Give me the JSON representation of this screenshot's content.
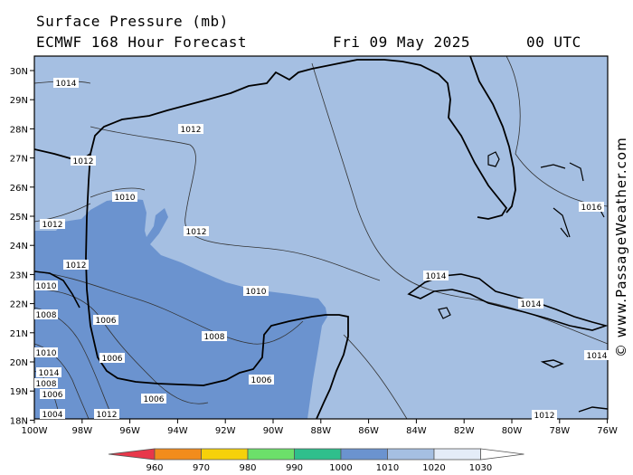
{
  "header": {
    "line1": "Surface Pressure (mb)",
    "line2": "ECMWF 168 Hour Forecast",
    "date": "Fri 09 May 2025",
    "time": "00 UTC"
  },
  "credit": "© www.PassageWeather.com",
  "axes": {
    "lat_labels": [
      "30N",
      "29N",
      "28N",
      "27N",
      "26N",
      "25N",
      "24N",
      "23N",
      "22N",
      "21N",
      "20N",
      "19N",
      "18N"
    ],
    "lon_labels": [
      "100W",
      "98W",
      "96W",
      "94W",
      "92W",
      "90W",
      "88W",
      "86W",
      "84W",
      "82W",
      "80W",
      "78W",
      "76W"
    ]
  },
  "legend": {
    "values": [
      "960",
      "970",
      "980",
      "990",
      "1000",
      "1010",
      "1020",
      "1030"
    ],
    "colors": [
      "#e8374a",
      "#f28c1c",
      "#f6d10a",
      "#6ce06a",
      "#2fbf8c",
      "#6b93cf",
      "#a5bfe2",
      "#e4ecf8"
    ]
  },
  "isobar_labels": [
    "1014",
    "1012",
    "1012",
    "1012",
    "1010",
    "1012",
    "1012",
    "1016",
    "1014",
    "1014",
    "1010",
    "1010",
    "1008",
    "1006",
    "1008",
    "1006",
    "1006",
    "1006",
    "1014",
    "1014",
    "1012",
    "1012",
    "1010",
    "1008",
    "1006",
    "1004"
  ],
  "colors": {
    "fill_1010_1020": "#a5bfe2",
    "fill_1000_1010": "#6b93cf",
    "coast": "#000000"
  }
}
